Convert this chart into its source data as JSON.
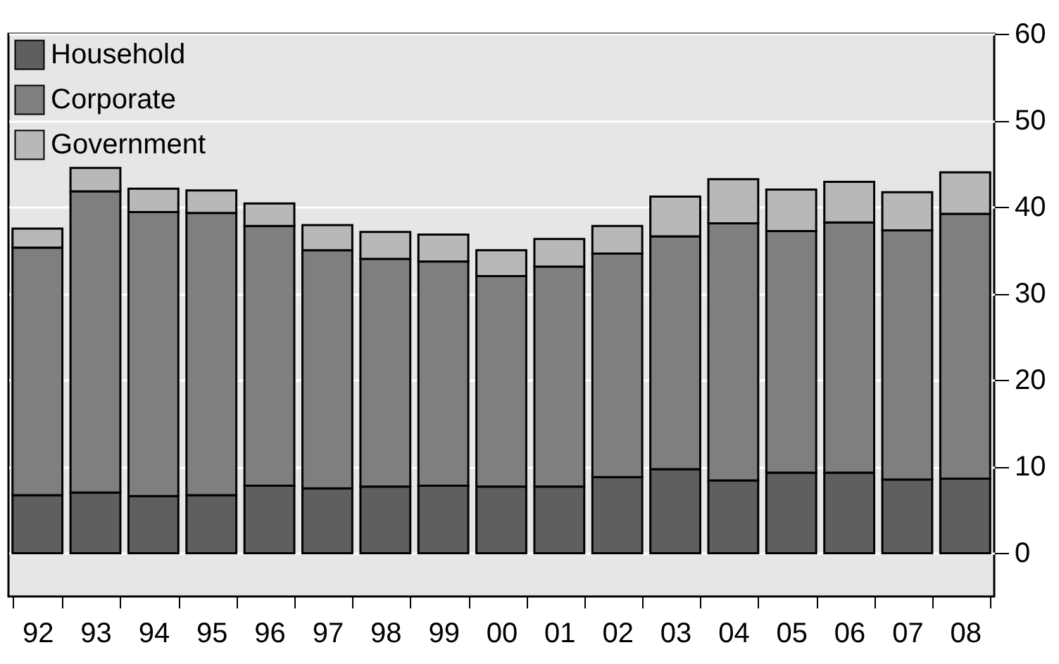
{
  "chart_data": {
    "type": "bar",
    "stacked": true,
    "categories": [
      "92",
      "93",
      "94",
      "95",
      "96",
      "97",
      "98",
      "99",
      "00",
      "01",
      "02",
      "03",
      "04",
      "05",
      "06",
      "07",
      "08"
    ],
    "series": [
      {
        "name": "Household",
        "color": "#5f5f5f",
        "values": [
          6.7,
          7.0,
          6.6,
          6.7,
          7.8,
          7.5,
          7.7,
          7.8,
          7.7,
          7.7,
          8.8,
          9.7,
          8.4,
          9.3,
          9.3,
          8.5,
          8.6
        ]
      },
      {
        "name": "Corporate",
        "color": "#7f7f7f",
        "values": [
          28.6,
          34.8,
          32.8,
          32.6,
          30.0,
          27.5,
          26.3,
          25.9,
          24.3,
          25.4,
          25.8,
          26.9,
          29.7,
          27.9,
          28.9,
          28.8,
          30.6
        ]
      },
      {
        "name": "Government",
        "color": "#b8b8b8",
        "values": [
          2.2,
          2.7,
          2.7,
          2.6,
          2.6,
          2.9,
          3.1,
          3.1,
          3.0,
          3.2,
          3.2,
          4.6,
          5.1,
          4.8,
          4.7,
          4.4,
          4.8
        ]
      }
    ],
    "ylim": [
      -5,
      60
    ],
    "yticks": [
      0,
      10,
      20,
      30,
      40,
      50,
      60
    ],
    "grid": "y",
    "legend": "top left"
  }
}
